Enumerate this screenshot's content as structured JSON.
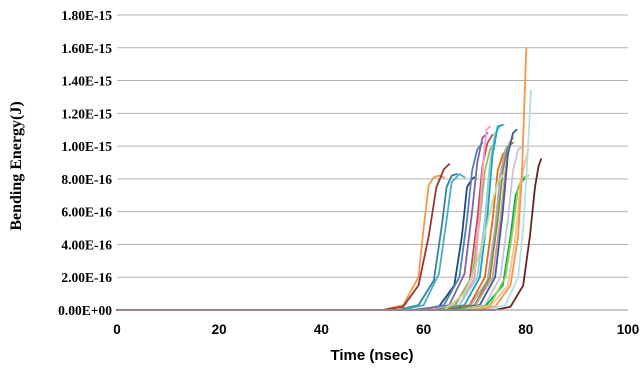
{
  "chart_data": {
    "type": "line",
    "xlabel": "Time (nsec)",
    "ylabel": "Bending Energy(J)",
    "xlim": [
      0,
      100
    ],
    "ylim": [
      0,
      1.8e-15
    ],
    "x_ticks": [
      "0",
      "20",
      "40",
      "60",
      "80",
      "100"
    ],
    "y_ticks": [
      "0.00E+00",
      "2.00E-16",
      "4.00E-16",
      "6.00E-16",
      "8.00E-16",
      "1.00E-15",
      "1.20E-15",
      "1.40E-15",
      "1.60E-15",
      "1.80E-15"
    ],
    "grid": "horizontal",
    "legend": "none",
    "series": [
      {
        "color": "#f79646",
        "points": [
          [
            0,
            0
          ],
          [
            52,
            0
          ],
          [
            56,
            3e-17
          ],
          [
            59,
            2e-16
          ],
          [
            60,
            5e-16
          ],
          [
            61,
            7.6e-16
          ],
          [
            62,
            8.1e-16
          ],
          [
            63,
            8.2e-16
          ],
          [
            64,
            8.1e-16
          ]
        ]
      },
      {
        "color": "#953735",
        "points": [
          [
            0,
            0
          ],
          [
            52,
            0
          ],
          [
            56,
            2e-17
          ],
          [
            59,
            1.5e-16
          ],
          [
            61,
            4.5e-16
          ],
          [
            62.5,
            7.5e-16
          ],
          [
            64,
            8.6e-16
          ],
          [
            65,
            8.9e-16
          ]
        ]
      },
      {
        "color": "#31859c",
        "points": [
          [
            0,
            0
          ],
          [
            55,
            0
          ],
          [
            59,
            3e-17
          ],
          [
            62,
            1.8e-16
          ],
          [
            63.5,
            5e-16
          ],
          [
            64.5,
            7.5e-16
          ],
          [
            65.5,
            8.2e-16
          ],
          [
            66.5,
            8.3e-16
          ]
        ]
      },
      {
        "color": "#4bacc6",
        "points": [
          [
            0,
            0
          ],
          [
            56,
            0
          ],
          [
            60,
            3e-17
          ],
          [
            63,
            2.2e-16
          ],
          [
            64.5,
            5.5e-16
          ],
          [
            65.5,
            7.8e-16
          ],
          [
            67,
            8.3e-16
          ],
          [
            68,
            8.1e-16
          ]
        ]
      },
      {
        "color": "#1f497d",
        "points": [
          [
            0,
            0
          ],
          [
            58,
            0
          ],
          [
            63,
            2e-17
          ],
          [
            66,
            1.5e-16
          ],
          [
            67.5,
            4.5e-16
          ],
          [
            68.5,
            7.5e-16
          ],
          [
            69.5,
            8e-16
          ],
          [
            70,
            8.1e-16
          ]
        ]
      },
      {
        "color": "#4f81bd",
        "points": [
          [
            0,
            0
          ],
          [
            59,
            0
          ],
          [
            64,
            3e-17
          ],
          [
            67,
            2e-16
          ],
          [
            68.5,
            5.5e-16
          ],
          [
            69.5,
            8.5e-16
          ],
          [
            70.5,
            9.8e-16
          ],
          [
            71.5,
            1.02e-15
          ]
        ]
      },
      {
        "color": "#8064a2",
        "points": [
          [
            0,
            0
          ],
          [
            60,
            0
          ],
          [
            65,
            3e-17
          ],
          [
            68,
            2.2e-16
          ],
          [
            69.5,
            6e-16
          ],
          [
            70.5,
            9e-16
          ],
          [
            71.5,
            1.05e-15
          ],
          [
            72.5,
            1.08e-15
          ]
        ]
      },
      {
        "color": "#c0504d",
        "points": [
          [
            0,
            0
          ],
          [
            60,
            0
          ],
          [
            66,
            2e-17
          ],
          [
            69,
            1.8e-16
          ],
          [
            70.5,
            5.5e-16
          ],
          [
            71.5,
            8.8e-16
          ],
          [
            72.5,
            1.02e-15
          ],
          [
            73.5,
            1.07e-15
          ]
        ]
      },
      {
        "color": "#9bbb59",
        "points": [
          [
            0,
            0
          ],
          [
            61,
            0
          ],
          [
            66,
            3e-17
          ],
          [
            69.5,
            2e-16
          ],
          [
            71,
            5.5e-16
          ],
          [
            72,
            8.5e-16
          ],
          [
            73,
            9.8e-16
          ],
          [
            74,
            1.02e-15
          ]
        ]
      },
      {
        "color": "#ff99cc",
        "points": [
          [
            0,
            0
          ],
          [
            61,
            0
          ],
          [
            67,
            3e-17
          ],
          [
            70,
            2e-16
          ],
          [
            71,
            6e-16
          ],
          [
            71.8,
            9.5e-16
          ],
          [
            72.3,
            1.1e-15
          ],
          [
            73,
            1.12e-15
          ]
        ]
      },
      {
        "color": "#93cddd",
        "points": [
          [
            0,
            0
          ],
          [
            62,
            0
          ],
          [
            67,
            3e-17
          ],
          [
            70.5,
            2e-16
          ],
          [
            72,
            5.5e-16
          ],
          [
            73,
            9e-16
          ],
          [
            74,
            1.08e-15
          ],
          [
            75,
            1.12e-15
          ]
        ]
      },
      {
        "color": "#17a2b8",
        "points": [
          [
            0,
            0
          ],
          [
            62,
            0
          ],
          [
            68,
            3e-17
          ],
          [
            71,
            2e-16
          ],
          [
            72.5,
            5.8e-16
          ],
          [
            73.5,
            9.5e-16
          ],
          [
            74.5,
            1.12e-15
          ],
          [
            75.5,
            1.13e-15
          ]
        ]
      },
      {
        "color": "#e46c0a",
        "points": [
          [
            0,
            0
          ],
          [
            63,
            0
          ],
          [
            69,
            3e-17
          ],
          [
            72,
            2e-16
          ],
          [
            73.5,
            5.5e-16
          ],
          [
            74.5,
            8.5e-16
          ],
          [
            75.5,
            9.5e-16
          ],
          [
            76.5,
            9.8e-16
          ]
        ]
      },
      {
        "color": "#b3a2c7",
        "points": [
          [
            0,
            0
          ],
          [
            63,
            0
          ],
          [
            69,
            2e-17
          ],
          [
            72.5,
            1.8e-16
          ],
          [
            74,
            5e-16
          ],
          [
            75,
            8.3e-16
          ],
          [
            76,
            9.8e-16
          ],
          [
            77,
            1.02e-15
          ]
        ]
      },
      {
        "color": "#76923c",
        "points": [
          [
            0,
            0
          ],
          [
            64,
            0
          ],
          [
            70,
            3e-17
          ],
          [
            73,
            2e-16
          ],
          [
            74.5,
            5.5e-16
          ],
          [
            75.5,
            8.5e-16
          ],
          [
            76.5,
            1e-15
          ],
          [
            77.5,
            1.02e-15
          ]
        ]
      },
      {
        "color": "#c3d69b",
        "points": [
          [
            0,
            0
          ],
          [
            64,
            0
          ],
          [
            68,
            1e-16
          ],
          [
            70,
            2.5e-16
          ],
          [
            71.5,
            4e-16
          ],
          [
            73,
            6e-16
          ],
          [
            74.5,
            7.8e-16
          ],
          [
            75.5,
            8.2e-16
          ]
        ]
      },
      {
        "color": "#d99694",
        "points": [
          [
            0,
            0
          ],
          [
            65,
            0
          ],
          [
            70,
            2e-17
          ],
          [
            73.5,
            2e-16
          ],
          [
            75,
            5.5e-16
          ],
          [
            76,
            8.5e-16
          ],
          [
            76.8,
            1.02e-15
          ],
          [
            77.5,
            1.05e-15
          ]
        ]
      },
      {
        "color": "#366092",
        "points": [
          [
            0,
            0
          ],
          [
            65,
            0
          ],
          [
            71,
            3e-17
          ],
          [
            74,
            2e-16
          ],
          [
            75.5,
            6e-16
          ],
          [
            76.5,
            9.5e-16
          ],
          [
            77.5,
            1.08e-15
          ],
          [
            78.2,
            1.1e-15
          ]
        ]
      },
      {
        "color": "#ccc1da",
        "points": [
          [
            0,
            0
          ],
          [
            66,
            0
          ],
          [
            72,
            3e-17
          ],
          [
            75,
            2e-16
          ],
          [
            76.5,
            5.5e-16
          ],
          [
            77.5,
            8.5e-16
          ],
          [
            78.5,
            9.8e-16
          ],
          [
            79.5,
            1e-15
          ]
        ]
      },
      {
        "color": "#00b050",
        "points": [
          [
            0,
            0
          ],
          [
            66,
            0
          ],
          [
            72,
            2e-17
          ],
          [
            75.5,
            1.5e-16
          ],
          [
            77,
            4.5e-16
          ],
          [
            78,
            7e-16
          ],
          [
            79,
            7.8e-16
          ],
          [
            80,
            8.1e-16
          ]
        ]
      },
      {
        "color": "#92d050",
        "points": [
          [
            0,
            0
          ],
          [
            67,
            0
          ],
          [
            73,
            3e-17
          ],
          [
            76,
            2e-16
          ],
          [
            77.5,
            5e-16
          ],
          [
            78.5,
            7.5e-16
          ],
          [
            79.5,
            8.1e-16
          ],
          [
            80.5,
            8.2e-16
          ]
        ]
      },
      {
        "color": "#fabf8f",
        "points": [
          [
            0,
            0
          ],
          [
            68,
            0
          ],
          [
            73,
            2e-17
          ],
          [
            76.5,
            1.5e-16
          ],
          [
            78,
            4.5e-16
          ],
          [
            79,
            7.8e-16
          ],
          [
            80,
            9.2e-16
          ],
          [
            80.5,
            9.8e-16
          ]
        ]
      },
      {
        "color": "#f79646",
        "points": [
          [
            0,
            0
          ],
          [
            70,
            0
          ],
          [
            74,
            2e-17
          ],
          [
            77,
            1.5e-16
          ],
          [
            78.5,
            4.5e-16
          ],
          [
            79.2,
            8e-16
          ],
          [
            79.7,
            1.25e-15
          ],
          [
            80.1,
            1.6e-15
          ]
        ]
      },
      {
        "color": "#b7dee8",
        "points": [
          [
            0,
            0
          ],
          [
            72,
            0
          ],
          [
            76,
            3e-17
          ],
          [
            78.5,
            2e-16
          ],
          [
            79.5,
            5e-16
          ],
          [
            80.2,
            8.5e-16
          ],
          [
            80.7,
            1.15e-15
          ],
          [
            81,
            1.34e-15
          ]
        ]
      },
      {
        "color": "#632523",
        "points": [
          [
            0,
            0
          ],
          [
            74,
            0
          ],
          [
            77,
            2e-17
          ],
          [
            79.5,
            1.5e-16
          ],
          [
            80.8,
            4.5e-16
          ],
          [
            81.8,
            7.5e-16
          ],
          [
            82.5,
            8.8e-16
          ],
          [
            83,
            9.2e-16
          ]
        ]
      }
    ]
  }
}
